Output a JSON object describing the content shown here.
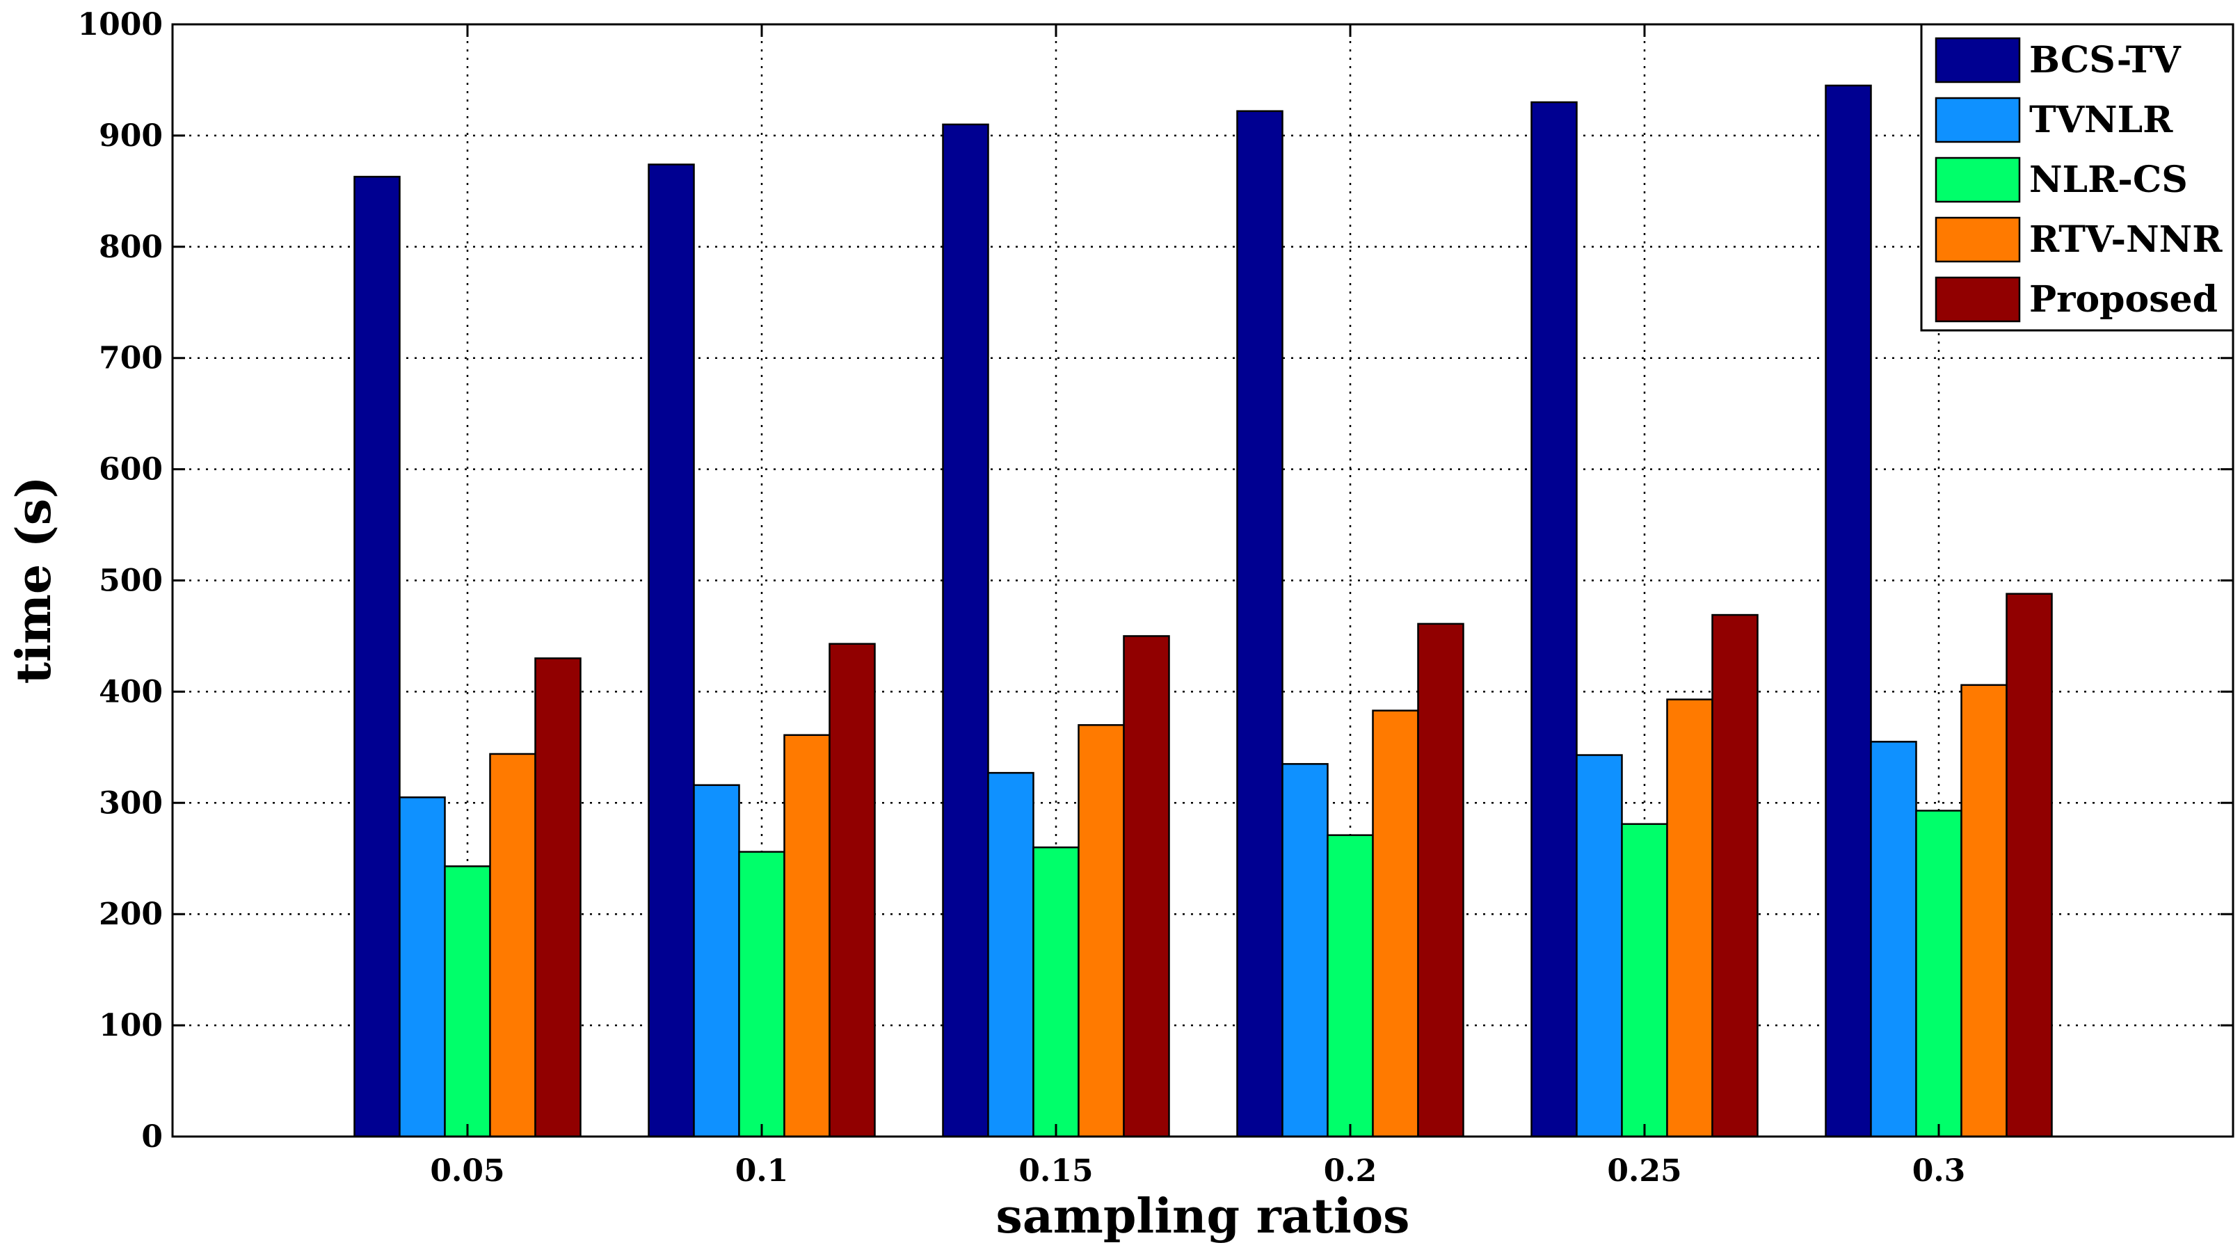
{
  "chart_data": {
    "type": "bar",
    "title": "",
    "xlabel": "sampling ratios",
    "ylabel": "time (s)",
    "categories": [
      "0.05",
      "0.1",
      "0.15",
      "0.2",
      "0.25",
      "0.3"
    ],
    "ylim": [
      0,
      1000
    ],
    "yticks": [
      0,
      100,
      200,
      300,
      400,
      500,
      600,
      700,
      800,
      900,
      1000
    ],
    "ytick_labels": [
      "0",
      "100",
      "200",
      "300",
      "400",
      "500",
      "600",
      "700",
      "800",
      "900",
      "1000"
    ],
    "grid": true,
    "legend_position": "top-right",
    "series": [
      {
        "name": "BCS-TV",
        "color": "#000091",
        "values": [
          863,
          874,
          910,
          922,
          930,
          945
        ]
      },
      {
        "name": "TVNLR",
        "color": "#0f91ff",
        "values": [
          305,
          316,
          327,
          335,
          343,
          355
        ]
      },
      {
        "name": "NLR-CS",
        "color": "#00ff6a",
        "values": [
          243,
          256,
          260,
          271,
          281,
          293
        ]
      },
      {
        "name": "RTV-NNR",
        "color": "#ff7a00",
        "values": [
          344,
          361,
          370,
          383,
          393,
          406
        ]
      },
      {
        "name": "Proposed",
        "color": "#910000",
        "values": [
          430,
          443,
          450,
          461,
          469,
          488
        ]
      }
    ]
  }
}
